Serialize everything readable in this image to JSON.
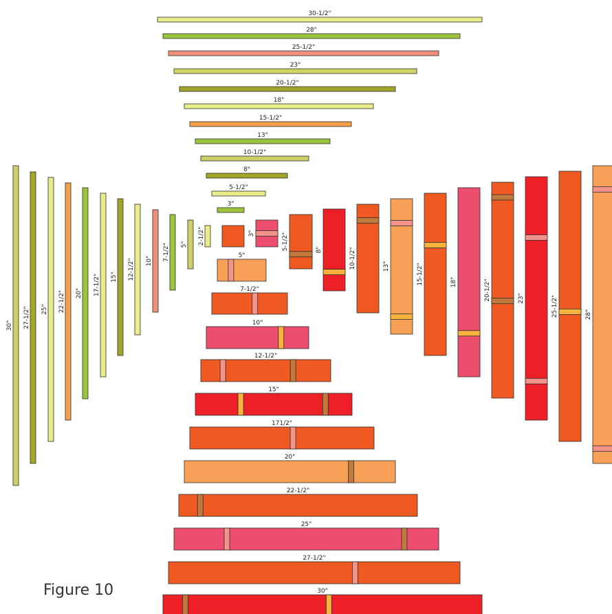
{
  "figure": {
    "caption": "Figure 10"
  },
  "colors": {
    "stroke": "#2b2b2b",
    "label": "#222222",
    "pale_yellow": "#e8ec8a",
    "lime": "#9bc53d",
    "salmon": "#f0907a",
    "olive_yellow": "#cfd465",
    "olive": "#a3a52a",
    "light_orange": "#f6a04a",
    "khaki": "#cccf6a",
    "orange_red": "#f05a22",
    "pink": "#ee4e6e",
    "red": "#ee1f27",
    "peach": "#f7a058",
    "seam_orange": "#f7b33c",
    "seam_brown": "#c17a3e",
    "seam_pink": "#f4938a"
  },
  "top_strips": [
    {
      "label": "30-1/2\"",
      "color": "pale_yellow"
    },
    {
      "label": "28\"",
      "color": "lime"
    },
    {
      "label": "25-1/2\"",
      "color": "salmon"
    },
    {
      "label": "23\"",
      "color": "olive_yellow"
    },
    {
      "label": "20-1/2\"",
      "color": "olive"
    },
    {
      "label": "18\"",
      "color": "pale_yellow"
    },
    {
      "label": "15-1/2\"",
      "color": "light_orange"
    },
    {
      "label": "13\"",
      "color": "lime"
    },
    {
      "label": "10-1/2\"",
      "color": "khaki"
    },
    {
      "label": "8\"",
      "color": "olive"
    },
    {
      "label": "5-1/2\"",
      "color": "pale_yellow"
    },
    {
      "label": "3\"",
      "color": "lime"
    }
  ],
  "left_strips": [
    {
      "label": "30\"",
      "color": "khaki"
    },
    {
      "label": "27-1/2\"",
      "color": "olive"
    },
    {
      "label": "25\"",
      "color": "pale_yellow"
    },
    {
      "label": "22-1/2\"",
      "color": "light_orange"
    },
    {
      "label": "20\"",
      "color": "lime"
    },
    {
      "label": "17-1/2\"",
      "color": "pale_yellow"
    },
    {
      "label": "15\"",
      "color": "olive"
    },
    {
      "label": "12-1/2\"",
      "color": "pale_yellow"
    },
    {
      "label": "10\"",
      "color": "salmon"
    },
    {
      "label": "7-1/2\"",
      "color": "lime"
    },
    {
      "label": "5\"",
      "color": "khaki"
    },
    {
      "label": "2-1/2\"",
      "color": "pale_yellow"
    }
  ],
  "center_square": {
    "color": "orange_red"
  },
  "right_blocks": [
    {
      "label": "3\"",
      "color": "pink",
      "seams": [
        {
          "at": 0.5,
          "color": "seam_pink"
        }
      ]
    },
    {
      "label": "5-1/2\"",
      "color": "orange_red",
      "seams": [
        {
          "at": 0.73,
          "color": "seam_brown"
        }
      ]
    },
    {
      "label": "8\"",
      "color": "red",
      "seams": [
        {
          "at": 0.77,
          "color": "seam_orange"
        }
      ]
    },
    {
      "label": "10-1/2\"",
      "color": "orange_red",
      "seams": [
        {
          "at": 0.15,
          "color": "seam_brown"
        }
      ]
    },
    {
      "label": "13\"",
      "color": "peach",
      "seams": [
        {
          "at": 0.18,
          "color": "seam_pink"
        },
        {
          "at": 0.87,
          "color": "seam_orange"
        }
      ]
    },
    {
      "label": "15-1/2\"",
      "color": "orange_red",
      "seams": [
        {
          "at": 0.32,
          "color": "seam_orange"
        }
      ]
    },
    {
      "label": "18\"",
      "color": "pink",
      "seams": [
        {
          "at": 0.77,
          "color": "seam_orange"
        }
      ]
    },
    {
      "label": "20-1/2\"",
      "color": "orange_red",
      "seams": [
        {
          "at": 0.07,
          "color": "seam_brown"
        },
        {
          "at": 0.55,
          "color": "seam_brown"
        }
      ]
    },
    {
      "label": "23\"",
      "color": "red",
      "seams": [
        {
          "at": 0.25,
          "color": "seam_pink"
        },
        {
          "at": 0.84,
          "color": "seam_pink"
        }
      ]
    },
    {
      "label": "25-1/2\"",
      "color": "orange_red",
      "seams": [
        {
          "at": 0.52,
          "color": "seam_orange"
        }
      ]
    },
    {
      "label": "28\"",
      "color": "peach",
      "seams": [
        {
          "at": 0.08,
          "color": "seam_pink"
        },
        {
          "at": 0.95,
          "color": "seam_pink"
        }
      ]
    }
  ],
  "bottom_blocks": [
    {
      "label": "5\"",
      "color": "peach",
      "seams": [
        {
          "at": 0.28,
          "color": "seam_pink"
        }
      ]
    },
    {
      "label": "7-1/2\"",
      "color": "orange_red",
      "seams": [
        {
          "at": 0.57,
          "color": "seam_pink"
        }
      ]
    },
    {
      "label": "10\"",
      "color": "pink",
      "seams": [
        {
          "at": 0.73,
          "color": "seam_orange"
        }
      ]
    },
    {
      "label": "12-1/2\"",
      "color": "orange_red",
      "seams": [
        {
          "at": 0.17,
          "color": "seam_pink"
        },
        {
          "at": 0.71,
          "color": "seam_brown"
        }
      ]
    },
    {
      "label": "15\"",
      "color": "red",
      "seams": [
        {
          "at": 0.29,
          "color": "seam_orange"
        },
        {
          "at": 0.83,
          "color": "seam_brown"
        }
      ]
    },
    {
      "label": "171/2\"",
      "color": "orange_red",
      "seams": [
        {
          "at": 0.56,
          "color": "seam_pink"
        }
      ]
    },
    {
      "label": "20\"",
      "color": "peach",
      "seams": [
        {
          "at": 0.79,
          "color": "seam_brown"
        }
      ]
    },
    {
      "label": "22-1/2\"",
      "color": "orange_red",
      "seams": [
        {
          "at": 0.09,
          "color": "seam_brown"
        }
      ]
    },
    {
      "label": "25\"",
      "color": "pink",
      "seams": [
        {
          "at": 0.2,
          "color": "seam_pink"
        },
        {
          "at": 0.87,
          "color": "seam_brown"
        }
      ]
    },
    {
      "label": "27-1/2\"",
      "color": "orange_red",
      "seams": [
        {
          "at": 0.64,
          "color": "seam_pink"
        }
      ]
    },
    {
      "label": "30\"",
      "color": "red",
      "seams": [
        {
          "at": 0.07,
          "color": "seam_brown"
        },
        {
          "at": 0.52,
          "color": "seam_orange"
        }
      ]
    }
  ]
}
